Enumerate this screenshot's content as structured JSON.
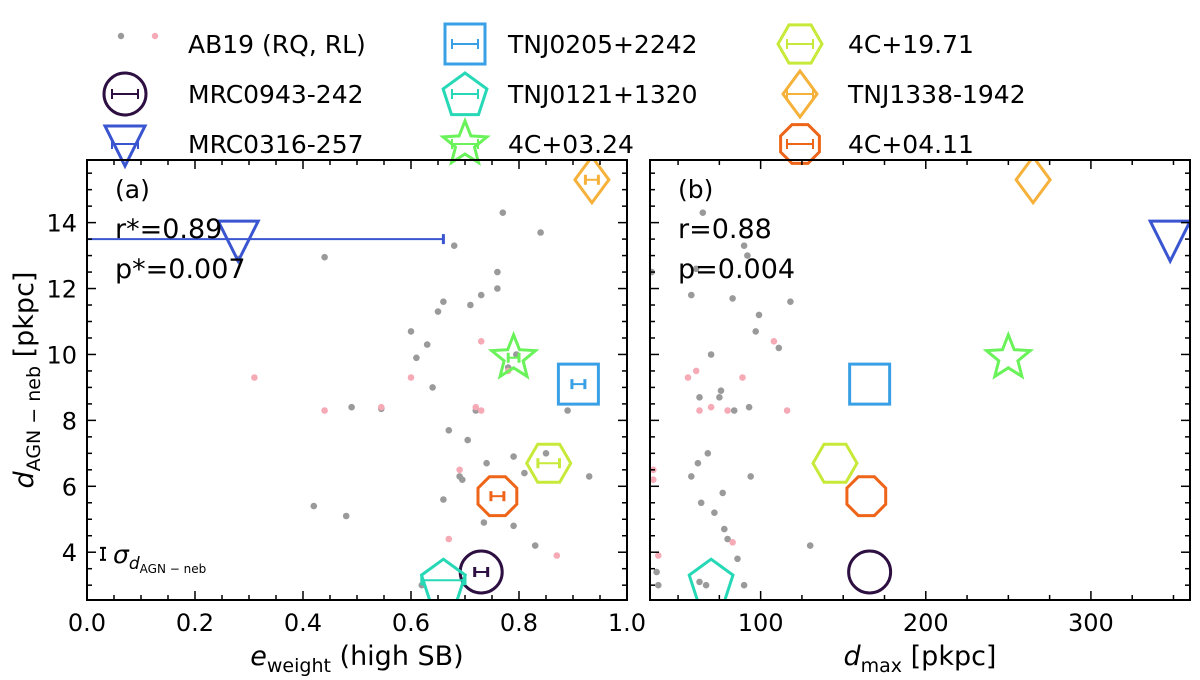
{
  "legend": [
    {
      "label": "AB19 (RQ, RL)",
      "marker": "dots"
    },
    {
      "label": "MRC0943-242",
      "marker": "circle",
      "color": "#2d0f42"
    },
    {
      "label": "MRC0316-257",
      "marker": "triangle-down",
      "color": "#3a55d0"
    },
    {
      "label": "TNJ0205+2242",
      "marker": "square",
      "color": "#3aa0e6"
    },
    {
      "label": "TNJ0121+1320",
      "marker": "pentagon",
      "color": "#27d8b6"
    },
    {
      "label": "4C+03.24",
      "marker": "star",
      "color": "#6af25a"
    },
    {
      "label": "4C+19.71",
      "marker": "hexagon",
      "color": "#c7ea3a"
    },
    {
      "label": "TNJ1338-1942",
      "marker": "diamond",
      "color": "#f6b13a"
    },
    {
      "label": "4C+04.11",
      "marker": "octagon",
      "color": "#ee6418"
    }
  ],
  "chart_data": [
    {
      "type": "scatter",
      "panel_label": "(a)",
      "stats": [
        "r*=0.89",
        "p*=0.007"
      ],
      "xlabel_main": "e",
      "xlabel_sub": "weight",
      "xlabel_tail": " (high SB)",
      "ylabel_main": "d",
      "ylabel_sub": "AGN − neb",
      "ylabel_tail": " [pkpc]",
      "xlim": [
        0.0,
        1.0
      ],
      "ylim": [
        2.55,
        15.9
      ],
      "xticks": [
        "0.0",
        "0.2",
        "0.4",
        "0.6",
        "0.8",
        "1.0"
      ],
      "yticks": [
        "4",
        "6",
        "8",
        "10",
        "12",
        "14"
      ],
      "error_note": "σ",
      "error_note_sub": "d",
      "error_note_sub2": "AGN − neb",
      "rq_points": [
        [
          0.28,
          12.9
        ],
        [
          0.42,
          5.4
        ],
        [
          0.44,
          12.95
        ],
        [
          0.48,
          5.1
        ],
        [
          0.49,
          8.4
        ],
        [
          0.545,
          8.35
        ],
        [
          0.6,
          10.7
        ],
        [
          0.61,
          9.9
        ],
        [
          0.62,
          3.0
        ],
        [
          0.63,
          10.3
        ],
        [
          0.64,
          9.0
        ],
        [
          0.65,
          11.3
        ],
        [
          0.66,
          5.6
        ],
        [
          0.66,
          11.6
        ],
        [
          0.67,
          7.7
        ],
        [
          0.68,
          13.3
        ],
        [
          0.69,
          6.3
        ],
        [
          0.695,
          6.2
        ],
        [
          0.705,
          7.4
        ],
        [
          0.71,
          11.5
        ],
        [
          0.72,
          8.3
        ],
        [
          0.73,
          11.8
        ],
        [
          0.735,
          4.9
        ],
        [
          0.74,
          6.7
        ],
        [
          0.76,
          12.0
        ],
        [
          0.76,
          12.5
        ],
        [
          0.77,
          14.3
        ],
        [
          0.78,
          9.6
        ],
        [
          0.79,
          6.9
        ],
        [
          0.795,
          10.0
        ],
        [
          0.79,
          4.8
        ],
        [
          0.81,
          6.4
        ],
        [
          0.83,
          4.2
        ],
        [
          0.84,
          13.7
        ],
        [
          0.85,
          7.0
        ],
        [
          0.89,
          8.3
        ],
        [
          0.93,
          6.3
        ]
      ],
      "rl_points": [
        [
          0.31,
          9.3
        ],
        [
          0.44,
          8.3
        ],
        [
          0.545,
          8.4
        ],
        [
          0.6,
          9.3
        ],
        [
          0.67,
          4.4
        ],
        [
          0.69,
          6.5
        ],
        [
          0.72,
          8.4
        ],
        [
          0.73,
          8.3
        ],
        [
          0.73,
          10.4
        ],
        [
          0.78,
          9.5
        ],
        [
          0.87,
          3.9
        ]
      ],
      "sources": [
        {
          "name": "MRC0943-242",
          "x": 0.73,
          "y": 3.4,
          "xerr": 0.012
        },
        {
          "name": "MRC0316-257",
          "x": 0.28,
          "y": 13.5,
          "xerr": 0.38
        },
        {
          "name": "TNJ0205+2242",
          "x": 0.91,
          "y": 9.1,
          "xerr": 0.012
        },
        {
          "name": "TNJ0121+1320",
          "x": 0.66,
          "y": 3.15,
          "xerr": 0.04
        },
        {
          "name": "4C+03.24",
          "x": 0.79,
          "y": 9.9,
          "xerr": 0.01
        },
        {
          "name": "4C+19.71",
          "x": 0.855,
          "y": 6.7,
          "xerr": 0.02
        },
        {
          "name": "TNJ1338-1942",
          "x": 0.935,
          "y": 15.3,
          "xerr": 0.012
        },
        {
          "name": "4C+04.11",
          "x": 0.76,
          "y": 5.7,
          "xerr": 0.012
        }
      ]
    },
    {
      "type": "scatter",
      "panel_label": "(b)",
      "stats": [
        "r=0.88",
        "p=0.004"
      ],
      "xlabel_main": "d",
      "xlabel_sub": "max",
      "xlabel_tail": " [pkpc]",
      "xlim": [
        33,
        360
      ],
      "ylim": [
        2.55,
        15.9
      ],
      "xticks": [
        "100",
        "200",
        "300"
      ],
      "rq_points": [
        [
          34,
          12.5
        ],
        [
          37,
          3.4
        ],
        [
          38,
          3.0
        ],
        [
          58,
          11.8
        ],
        [
          61,
          12.6
        ],
        [
          62,
          6.7
        ],
        [
          63,
          8.7
        ],
        [
          64,
          5.5
        ],
        [
          65,
          14.3
        ],
        [
          67,
          3.0
        ],
        [
          68,
          7.0
        ],
        [
          70,
          10.0
        ],
        [
          72,
          5.2
        ],
        [
          75,
          8.7
        ],
        [
          76,
          8.9
        ],
        [
          77,
          5.8
        ],
        [
          78,
          4.7
        ],
        [
          80,
          4.4
        ],
        [
          83,
          11.7
        ],
        [
          84,
          8.3
        ],
        [
          86,
          3.8
        ],
        [
          90,
          13.3
        ],
        [
          90,
          3.0
        ],
        [
          92,
          13.0
        ],
        [
          93,
          8.4
        ],
        [
          94,
          6.3
        ],
        [
          97,
          10.7
        ],
        [
          99,
          11.2
        ],
        [
          111,
          10.2
        ],
        [
          118,
          11.6
        ],
        [
          130,
          4.2
        ],
        [
          58,
          6.3
        ],
        [
          63,
          3.1
        ]
      ],
      "rl_points": [
        [
          35,
          6.5
        ],
        [
          35,
          6.2
        ],
        [
          38,
          3.9
        ],
        [
          56,
          9.3
        ],
        [
          61,
          9.5
        ],
        [
          63,
          8.3
        ],
        [
          70,
          8.4
        ],
        [
          80,
          8.3
        ],
        [
          83,
          4.3
        ],
        [
          89,
          9.3
        ],
        [
          108,
          10.4
        ],
        [
          116,
          8.3
        ]
      ],
      "sources": [
        {
          "name": "MRC0943-242",
          "x": 166,
          "y": 3.4
        },
        {
          "name": "MRC0316-257",
          "x": 348,
          "y": 13.5
        },
        {
          "name": "TNJ0205+2242",
          "x": 166,
          "y": 9.1
        },
        {
          "name": "TNJ0121+1320",
          "x": 70,
          "y": 3.15
        },
        {
          "name": "4C+03.24",
          "x": 250,
          "y": 9.9
        },
        {
          "name": "4C+19.71",
          "x": 145,
          "y": 6.7
        },
        {
          "name": "TNJ1338-1942",
          "x": 265,
          "y": 15.3
        },
        {
          "name": "4C+04.11",
          "x": 164,
          "y": 5.7
        }
      ]
    }
  ]
}
